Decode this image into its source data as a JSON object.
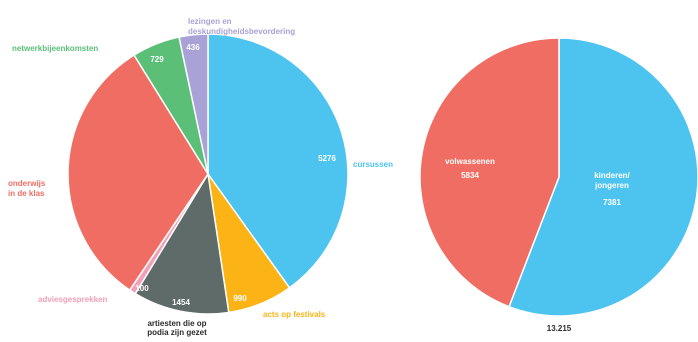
{
  "colors": {
    "cursussen": "#4dc4f0",
    "acts_op_festivals": "#fbb315",
    "artiesten": "#5f6b69",
    "adviesgesprekken": "#f2a0b8",
    "onderwijs": "#ef6d62",
    "netwerk": "#5cbf78",
    "lezingen": "#a9a2d6",
    "kinderen": "#4dc4f0",
    "volwassenen": "#ef6d62",
    "dark_text": "#2b2b2b"
  },
  "chart_data": [
    {
      "type": "pie",
      "title": "",
      "slices": [
        {
          "key": "cursussen",
          "label": "cursussen",
          "value": 5276,
          "value_label": "5276"
        },
        {
          "key": "acts_op_festivals",
          "label": "acts op festivals",
          "value": 990,
          "value_label": "990"
        },
        {
          "key": "artiesten",
          "label": "artiesten die op podia zijn gezet",
          "value": 1454,
          "value_label": "1454"
        },
        {
          "key": "adviesgesprekken",
          "label": "adviesgesprekken",
          "value": 100,
          "value_label": "100"
        },
        {
          "key": "onderwijs",
          "label": "onderwijs in de klas",
          "value": 4170,
          "value_label": "4170"
        },
        {
          "key": "netwerk",
          "label": "netwerkbijeenkomsten",
          "value": 729,
          "value_label": "729"
        },
        {
          "key": "lezingen",
          "label": "lezingen en deskundigheidsbevordering",
          "value": 436,
          "value_label": "436"
        }
      ]
    },
    {
      "type": "pie",
      "title": "",
      "total_label": "13.215",
      "slices": [
        {
          "key": "kinderen",
          "label": "kinderen/ jongeren",
          "value": 7381,
          "value_label": "7381"
        },
        {
          "key": "volwassenen",
          "label": "volwassenen",
          "value": 5834,
          "value_label": "5834"
        }
      ]
    }
  ]
}
